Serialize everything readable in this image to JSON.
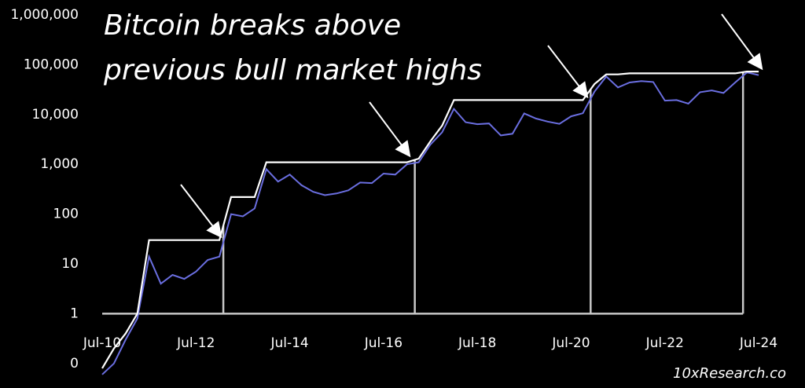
{
  "chart_data": {
    "type": "line",
    "title": "Bitcoin breaks above previous bull market highs",
    "source": "10xResearch.co",
    "log_scale": true,
    "x": [
      "Jul-10",
      "Oct-10",
      "Jan-11",
      "Apr-11",
      "Jul-11",
      "Oct-11",
      "Jan-12",
      "Apr-12",
      "Jul-12",
      "Oct-12",
      "Jan-13",
      "Apr-13",
      "Jul-13",
      "Oct-13",
      "Jan-14",
      "Apr-14",
      "Jul-14",
      "Oct-14",
      "Jan-15",
      "Apr-15",
      "Jul-15",
      "Oct-15",
      "Jan-16",
      "Apr-16",
      "Jul-16",
      "Oct-16",
      "Jan-17",
      "Apr-17",
      "Jul-17",
      "Oct-17",
      "Jan-18",
      "Apr-18",
      "Jul-18",
      "Oct-18",
      "Jan-19",
      "Apr-19",
      "Jul-19",
      "Oct-19",
      "Jan-20",
      "Apr-20",
      "Jul-20",
      "Oct-20",
      "Jan-21",
      "Apr-21",
      "Jul-21",
      "Oct-21",
      "Jan-22",
      "Apr-22",
      "Jul-22",
      "Oct-22",
      "Jan-23",
      "Apr-23",
      "Jul-23",
      "Oct-23",
      "Jan-24",
      "Apr-24",
      "Jul-24"
    ],
    "series": [
      {
        "color": "#6a6ee0",
        "values": [
          0.06,
          0.1,
          0.3,
          0.8,
          14,
          4,
          6,
          5,
          7,
          12,
          14,
          100,
          90,
          130,
          800,
          450,
          620,
          380,
          280,
          240,
          260,
          300,
          430,
          420,
          650,
          620,
          1000,
          1100,
          2500,
          4400,
          13000,
          7000,
          6400,
          6600,
          3800,
          4100,
          10500,
          8300,
          7200,
          6500,
          9200,
          10600,
          29000,
          58000,
          35000,
          44000,
          47000,
          45000,
          19000,
          19500,
          16500,
          28000,
          30500,
          27000,
          44000,
          70000,
          62000
        ]
      },
      {
        "color": "#ffffff",
        "values": [
          0.08,
          0.2,
          0.4,
          1,
          30,
          30,
          30,
          30,
          30,
          30,
          30,
          220,
          220,
          220,
          1100,
          1100,
          1100,
          1100,
          1100,
          1100,
          1100,
          1100,
          1100,
          1100,
          1100,
          1100,
          1100,
          1300,
          2900,
          6000,
          19500,
          19500,
          19500,
          19500,
          19500,
          19500,
          19500,
          19500,
          19500,
          19500,
          19500,
          19500,
          41000,
          64000,
          64000,
          67000,
          67000,
          67000,
          67000,
          67000,
          67000,
          67000,
          67000,
          67000,
          67000,
          73000,
          73000
        ]
      }
    ],
    "breakouts": [
      "Feb-13",
      "Mar-17",
      "Dec-20",
      "Mar-24"
    ],
    "baseline": 1,
    "xlim": [
      "Jul-10",
      "Sep-24"
    ],
    "xticks": [
      "Jul-10",
      "Jul-12",
      "Jul-14",
      "Jul-16",
      "Jul-18",
      "Jul-20",
      "Jul-22",
      "Jul-24"
    ],
    "ylim": [
      0.04,
      1000000
    ],
    "yticks": [
      {
        "value": 1000000,
        "label": "1,000,000"
      },
      {
        "value": 100000,
        "label": "100,000"
      },
      {
        "value": 10000,
        "label": "10,000"
      },
      {
        "value": 1000,
        "label": "1,000"
      },
      100,
      10,
      1,
      {
        "value": 0.1,
        "label": "0"
      }
    ]
  }
}
